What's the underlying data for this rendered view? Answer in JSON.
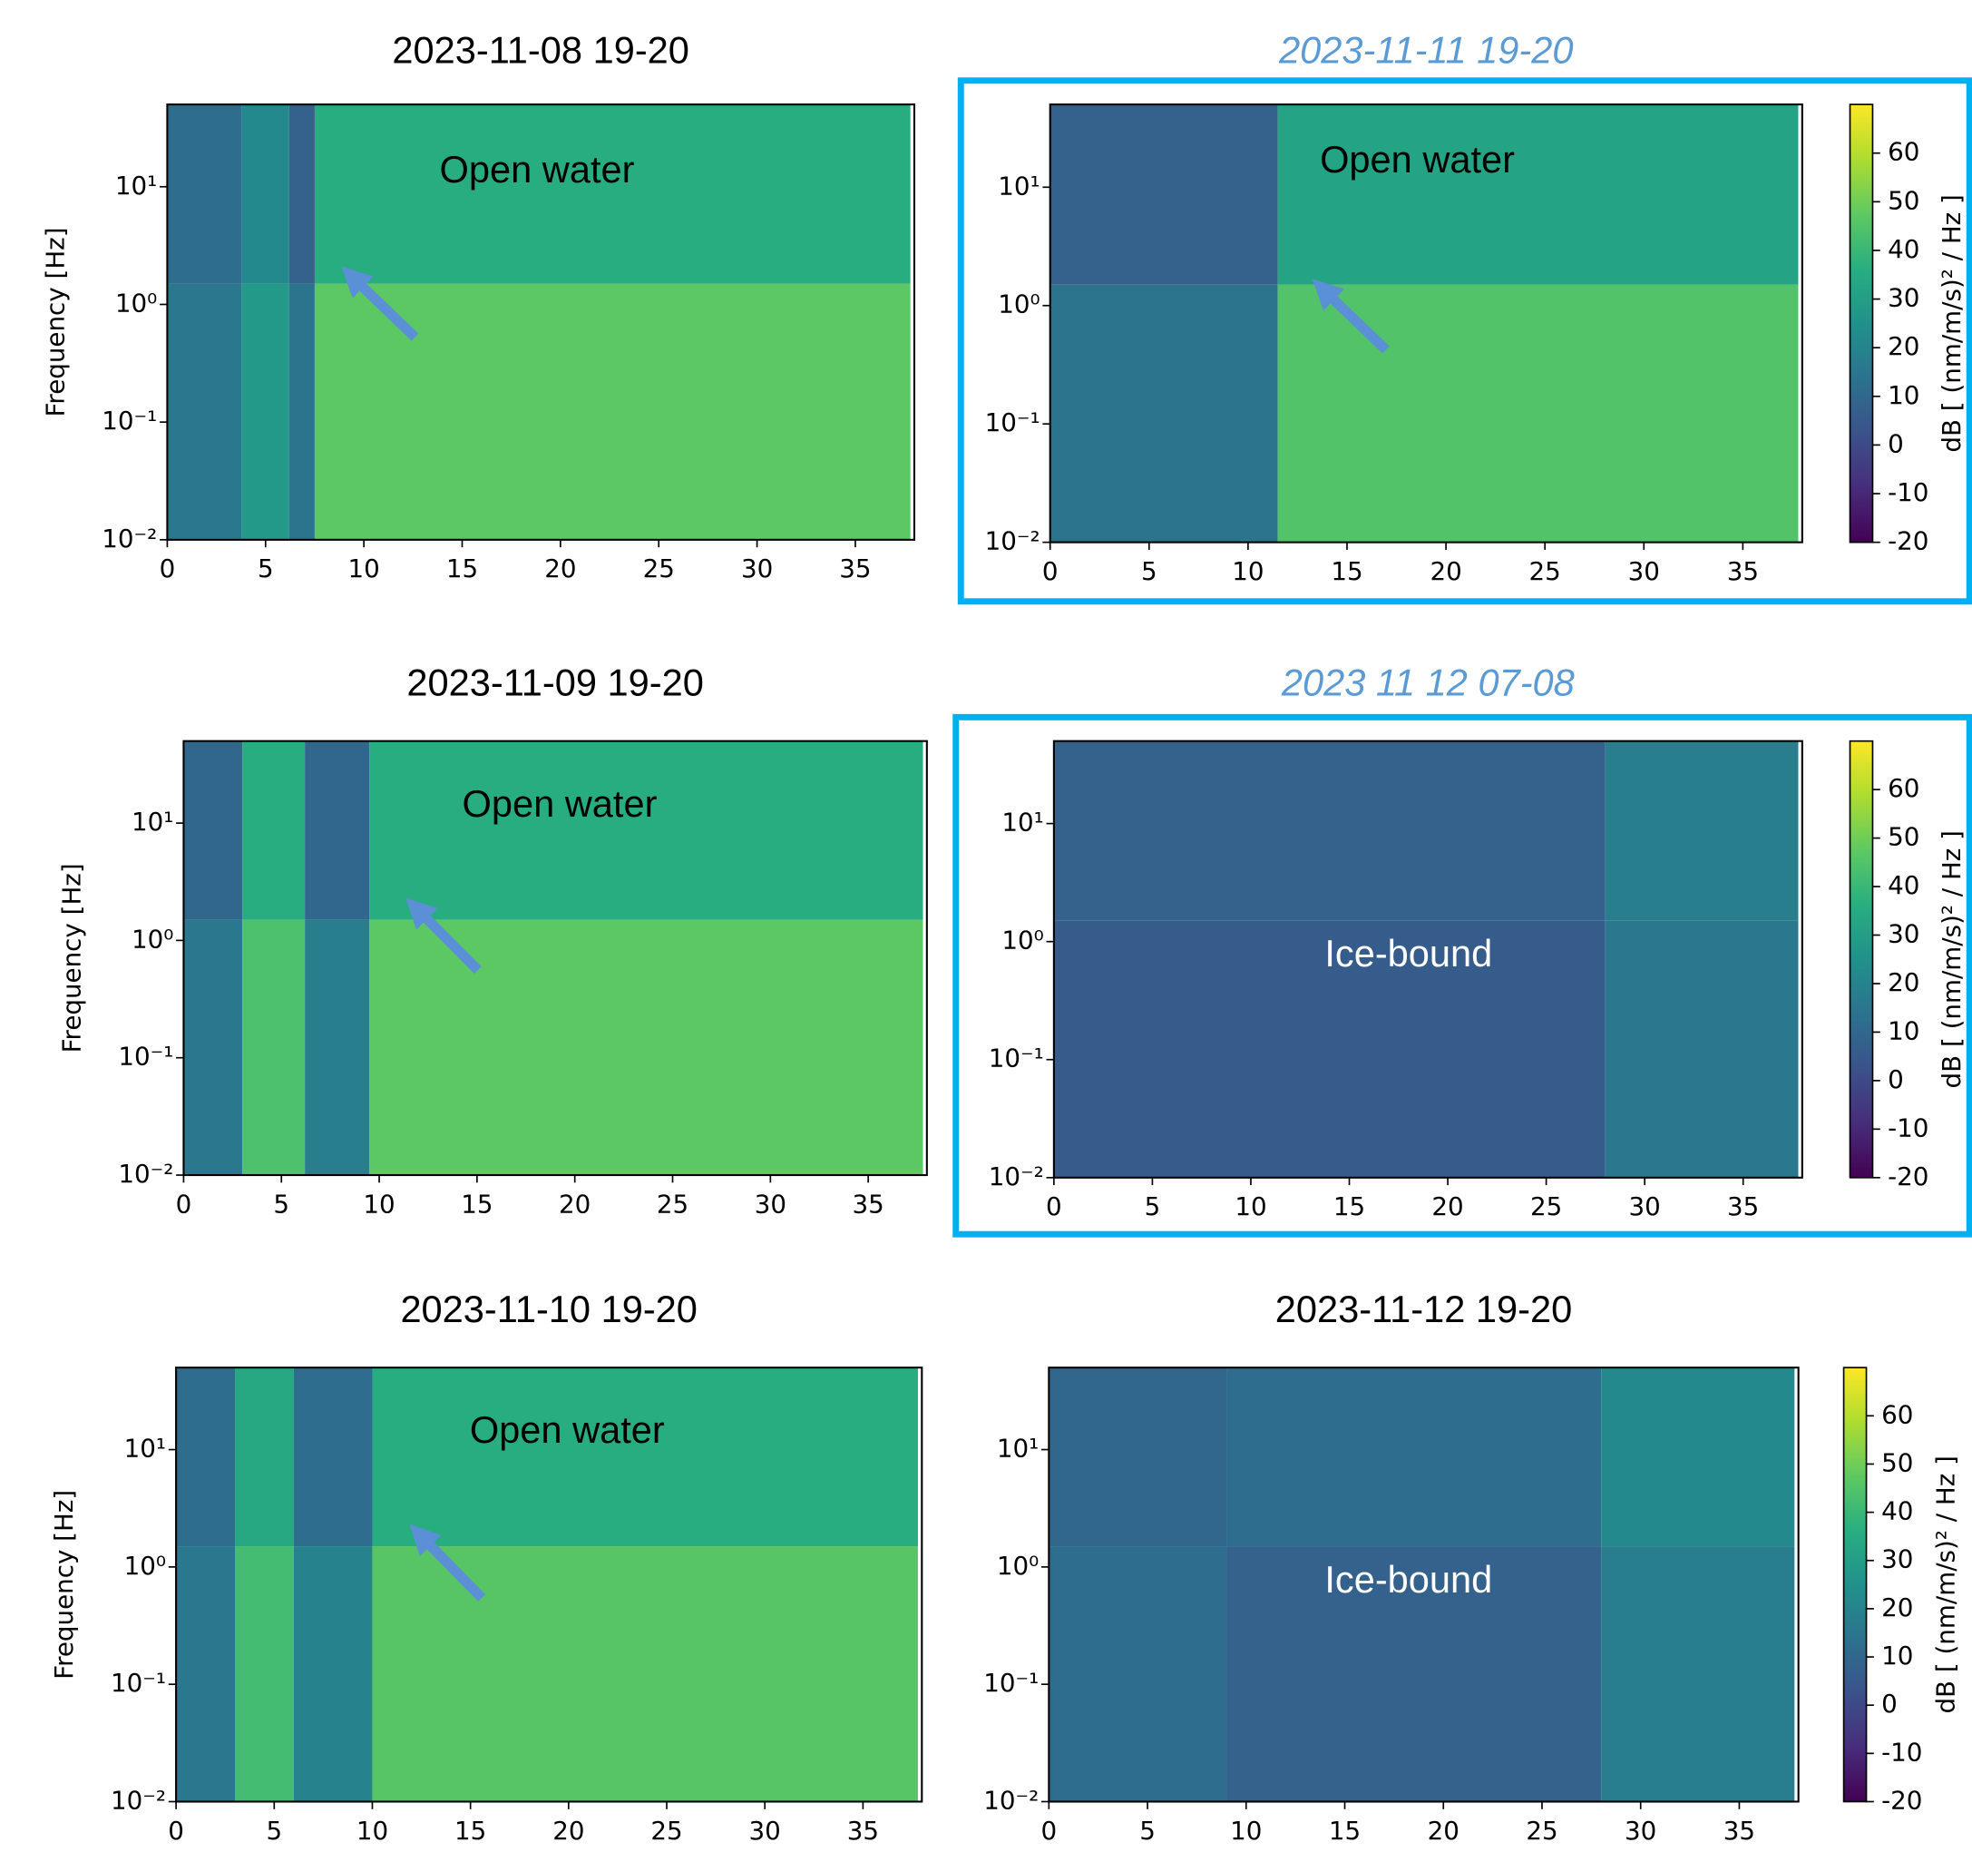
{
  "chart_data": [
    {
      "type": "heatmap",
      "title": "2023-11-08  19-20",
      "annotation": "Open water",
      "annotation_color": "#000000",
      "x_bins": [
        0,
        3.8,
        6.2,
        7.5,
        37.8
      ],
      "y_bins": [
        0.01,
        1.5,
        50
      ],
      "z": [
        [
          16,
          28,
          14,
          47
        ],
        [
          12,
          22,
          8,
          36
        ]
      ],
      "xlim": [
        0,
        38
      ],
      "ylim": [
        0.01,
        50
      ],
      "xticks": [
        0,
        5,
        10,
        15,
        20,
        25,
        30,
        35
      ],
      "yticks": [
        {
          "value": 0.01,
          "label": "10⁻²"
        },
        {
          "value": 0.1,
          "label": "10⁻¹"
        },
        {
          "value": 1,
          "label": "10⁰"
        },
        {
          "value": 10,
          "label": "10¹"
        }
      ],
      "log_y": true,
      "ylabel": "Frequency [Hz]",
      "highlight": false,
      "title_color": "#000000",
      "title_italic": false,
      "clim": [
        -20,
        70
      ]
    },
    {
      "type": "heatmap",
      "title": "2023-11-11  19-20",
      "annotation": "Open water",
      "annotation_color": "#000000",
      "x_bins": [
        0,
        11.5,
        37.8
      ],
      "y_bins": [
        0.01,
        1.5,
        50
      ],
      "z": [
        [
          14,
          45
        ],
        [
          8,
          32
        ]
      ],
      "xlim": [
        0,
        38
      ],
      "ylim": [
        0.01,
        50
      ],
      "xticks": [
        0,
        5,
        10,
        15,
        20,
        25,
        30,
        35
      ],
      "yticks": [
        {
          "value": 0.01,
          "label": "10⁻²"
        },
        {
          "value": 0.1,
          "label": "10⁻¹"
        },
        {
          "value": 1,
          "label": "10⁰"
        },
        {
          "value": 10,
          "label": "10¹"
        }
      ],
      "log_y": true,
      "highlight": true,
      "highlight_color": "#00b0f0",
      "title_color": "#5b9bd5",
      "title_italic": true,
      "clim": [
        -20,
        70
      ],
      "colorbar": {
        "label": "dB [ (nm/m/s)² / Hz ]",
        "ticks": [
          -20,
          -10,
          0,
          10,
          20,
          30,
          40,
          50,
          60
        ]
      }
    },
    {
      "type": "heatmap",
      "title": "2023-11-09  19-20",
      "annotation": "Open water",
      "annotation_color": "#000000",
      "x_bins": [
        0,
        3,
        6.2,
        9.5,
        37.8
      ],
      "y_bins": [
        0.01,
        1.5,
        50
      ],
      "z": [
        [
          16,
          44,
          18,
          47
        ],
        [
          10,
          36,
          10,
          36
        ]
      ],
      "xlim": [
        0,
        38
      ],
      "ylim": [
        0.01,
        50
      ],
      "xticks": [
        0,
        5,
        10,
        15,
        20,
        25,
        30,
        35
      ],
      "yticks": [
        {
          "value": 0.01,
          "label": "10⁻²"
        },
        {
          "value": 0.1,
          "label": "10⁻¹"
        },
        {
          "value": 1,
          "label": "10⁰"
        },
        {
          "value": 10,
          "label": "10¹"
        }
      ],
      "log_y": true,
      "ylabel": "Frequency [Hz]",
      "highlight": false,
      "title_color": "#000000",
      "title_italic": false,
      "clim": [
        -20,
        70
      ]
    },
    {
      "type": "heatmap",
      "title": "2023 11 12  07-08",
      "annotation": "Ice-bound",
      "annotation_color": "#ffffff",
      "x_bins": [
        0,
        28,
        37.8
      ],
      "y_bins": [
        0.01,
        1.5,
        50
      ],
      "z": [
        [
          6,
          16
        ],
        [
          8,
          18
        ]
      ],
      "xlim": [
        0,
        38
      ],
      "ylim": [
        0.01,
        50
      ],
      "xticks": [
        0,
        5,
        10,
        15,
        20,
        25,
        30,
        35
      ],
      "yticks": [
        {
          "value": 0.01,
          "label": "10⁻²"
        },
        {
          "value": 0.1,
          "label": "10⁻¹"
        },
        {
          "value": 1,
          "label": "10⁰"
        },
        {
          "value": 10,
          "label": "10¹"
        }
      ],
      "log_y": true,
      "highlight": true,
      "highlight_color": "#00b0f0",
      "title_color": "#5b9bd5",
      "title_italic": true,
      "clim": [
        -20,
        70
      ],
      "colorbar": {
        "label": "dB [ (nm/m/s)² / Hz ]",
        "ticks": [
          -20,
          -10,
          0,
          10,
          20,
          30,
          40,
          50,
          60
        ]
      }
    },
    {
      "type": "heatmap",
      "title": "2023-11-10  19-20",
      "annotation": "Open water",
      "annotation_color": "#000000",
      "x_bins": [
        0,
        3,
        6,
        10,
        37.8
      ],
      "y_bins": [
        0.01,
        1.5,
        50
      ],
      "z": [
        [
          16,
          42,
          20,
          46
        ],
        [
          12,
          34,
          12,
          36
        ]
      ],
      "xlim": [
        0,
        38
      ],
      "ylim": [
        0.01,
        50
      ],
      "xticks": [
        0,
        5,
        10,
        15,
        20,
        25,
        30,
        35
      ],
      "yticks": [
        {
          "value": 0.01,
          "label": "10⁻²"
        },
        {
          "value": 0.1,
          "label": "10⁻¹"
        },
        {
          "value": 1,
          "label": "10⁰"
        },
        {
          "value": 10,
          "label": "10¹"
        }
      ],
      "log_y": true,
      "ylabel": "Frequency [Hz]",
      "highlight": false,
      "title_color": "#000000",
      "title_italic": false,
      "clim": [
        -20,
        70
      ]
    },
    {
      "type": "heatmap",
      "title": "2023-11-12  19-20",
      "annotation": "Ice-bound",
      "annotation_color": "#ffffff",
      "x_bins": [
        0,
        9,
        28,
        37.8
      ],
      "y_bins": [
        0.01,
        1.5,
        50
      ],
      "z": [
        [
          12,
          8,
          18
        ],
        [
          10,
          12,
          22
        ]
      ],
      "xlim": [
        0,
        38
      ],
      "ylim": [
        0.01,
        50
      ],
      "xticks": [
        0,
        5,
        10,
        15,
        20,
        25,
        30,
        35
      ],
      "yticks": [
        {
          "value": 0.01,
          "label": "10⁻²"
        },
        {
          "value": 0.1,
          "label": "10⁻¹"
        },
        {
          "value": 1,
          "label": "10⁰"
        },
        {
          "value": 10,
          "label": "10¹"
        }
      ],
      "log_y": true,
      "highlight": false,
      "title_color": "#000000",
      "title_italic": false,
      "clim": [
        -20,
        70
      ],
      "colorbar": {
        "label": "dB [ (nm/m/s)² / Hz ]",
        "ticks": [
          -20,
          -10,
          0,
          10,
          20,
          30,
          40,
          50,
          60
        ]
      }
    }
  ],
  "colormap": [
    "#440154",
    "#472d7b",
    "#3b528b",
    "#2c728e",
    "#21918c",
    "#28ae80",
    "#5ec962",
    "#addc30",
    "#fde725"
  ]
}
